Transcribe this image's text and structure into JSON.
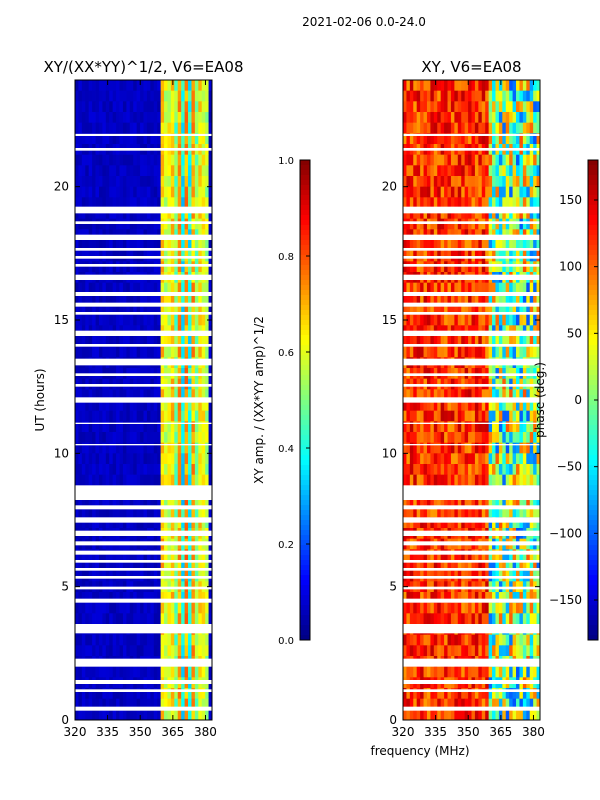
{
  "figure_title": "2021-02-06 0.0-24.0",
  "chart_data": [
    {
      "type": "heatmap",
      "title": "XY/(XX*YY)^1/2, V6=EA08",
      "xlabel": "",
      "ylabel": "UT (hours)",
      "xlim": [
        320,
        383
      ],
      "ylim": [
        0,
        24
      ],
      "xticks": [
        320,
        335,
        350,
        365,
        380
      ],
      "yticks": [
        0,
        5,
        10,
        15,
        20
      ],
      "colorbar": {
        "label": "XY amp. / (XX*YY amp)^1/2",
        "range": [
          0.0,
          1.0
        ],
        "ticks": [
          "0.0",
          "0.2",
          "0.4",
          "0.6",
          "0.8",
          "1.0"
        ],
        "colormap": "jet"
      },
      "notes": "Mostly low (~0.05) amplitude; elevated values 0.3-0.8 in channels ~360-380 MHz; horizontal white gaps are flagged data."
    },
    {
      "type": "heatmap",
      "title": "XY, V6=EA08",
      "xlabel": "frequency (MHz)",
      "ylabel": "",
      "xlim": [
        320,
        383
      ],
      "ylim": [
        0,
        24
      ],
      "xticks": [
        320,
        335,
        350,
        365,
        380
      ],
      "yticks": [
        0,
        5,
        10,
        15,
        20
      ],
      "colorbar": {
        "label": "phase (deg.)",
        "range": [
          -180,
          180
        ],
        "ticks": [
          "150",
          "100",
          "50",
          "0",
          "−50",
          "−100",
          "−150"
        ],
        "colormap": "jet"
      },
      "notes": "Phase mostly ~100-170 deg across 320-360 MHz; 360-383 MHz shows mixed phases (green/blue); white gaps are flagged data."
    }
  ],
  "flag_gaps_hours": [
    [
      0.35,
      0.5
    ],
    [
      1.05,
      1.15
    ],
    [
      1.35,
      1.5
    ],
    [
      2.0,
      2.3
    ],
    [
      3.25,
      3.6
    ],
    [
      4.4,
      4.55
    ],
    [
      4.9,
      5.0
    ],
    [
      5.3,
      5.4
    ],
    [
      5.6,
      5.7
    ],
    [
      5.9,
      6.0
    ],
    [
      6.2,
      6.35
    ],
    [
      6.55,
      6.7
    ],
    [
      6.9,
      7.1
    ],
    [
      7.4,
      7.6
    ],
    [
      7.9,
      8.05
    ],
    [
      8.25,
      8.8
    ],
    [
      10.3,
      10.35
    ],
    [
      11.1,
      11.15
    ],
    [
      11.9,
      12.1
    ],
    [
      12.5,
      12.6
    ],
    [
      12.9,
      13.0
    ],
    [
      13.3,
      13.55
    ],
    [
      14.0,
      14.1
    ],
    [
      14.4,
      14.6
    ],
    [
      15.2,
      15.3
    ],
    [
      15.5,
      15.65
    ],
    [
      15.9,
      16.05
    ],
    [
      16.5,
      16.7
    ],
    [
      17.0,
      17.1
    ],
    [
      17.3,
      17.4
    ],
    [
      17.6,
      17.7
    ],
    [
      18.0,
      18.2
    ],
    [
      18.6,
      18.7
    ],
    [
      19.0,
      19.25
    ],
    [
      21.35,
      21.45
    ],
    [
      21.9,
      21.98
    ]
  ]
}
